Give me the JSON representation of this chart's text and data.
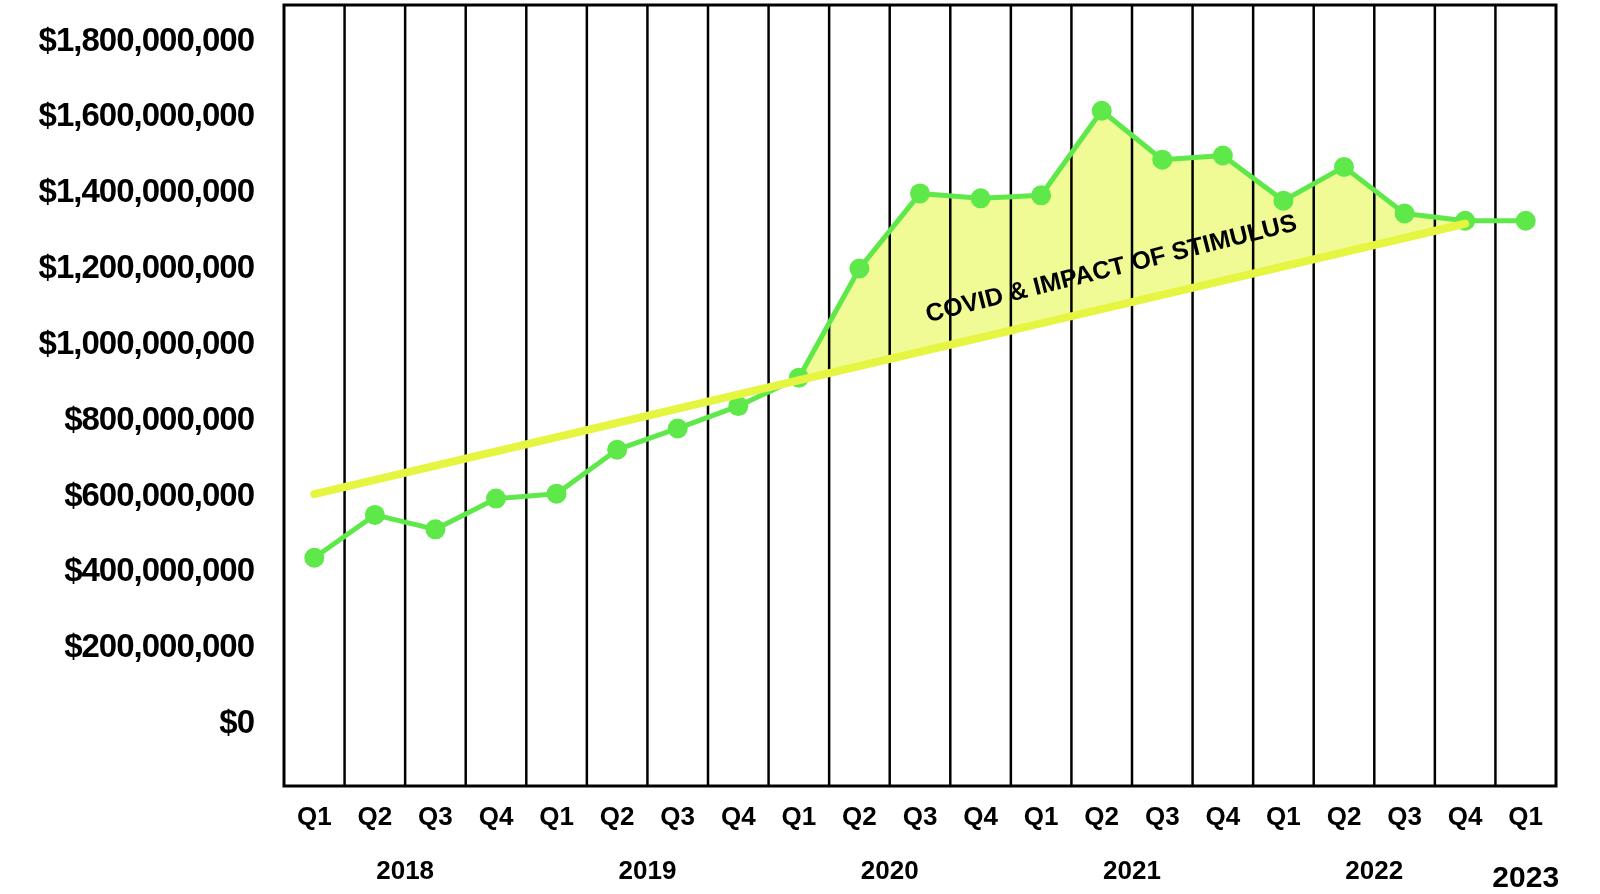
{
  "chart_data": {
    "type": "line",
    "categories": [
      "Q1",
      "Q2",
      "Q3",
      "Q4",
      "Q1",
      "Q2",
      "Q3",
      "Q4",
      "Q1",
      "Q2",
      "Q3",
      "Q4",
      "Q1",
      "Q2",
      "Q3",
      "Q4",
      "Q1",
      "Q2",
      "Q3",
      "Q4",
      "Q1"
    ],
    "series": [
      {
        "color": "#5fe84a",
        "marker": "circle",
        "values": [
          432000000,
          545000000,
          507000000,
          588000000,
          601000000,
          717000000,
          773000000,
          832000000,
          907000000,
          1195000000,
          1393000000,
          1380000000,
          1388000000,
          1611000000,
          1482000000,
          1493000000,
          1374000000,
          1463000000,
          1340000000,
          1321000000,
          1321000000
        ]
      },
      {
        "color": "#e6f542",
        "marker": "none",
        "values": [
          600000000,
          null,
          null,
          null,
          null,
          null,
          null,
          null,
          null,
          null,
          null,
          null,
          null,
          null,
          null,
          null,
          null,
          null,
          null,
          1313000000,
          null
        ]
      }
    ],
    "ylim": [
      -170000000,
      1890000000
    ],
    "yticks": [
      {
        "value": 0,
        "label": "$0"
      },
      {
        "value": 200000000,
        "label": "$200,000,000"
      },
      {
        "value": 400000000,
        "label": "$400,000,000"
      },
      {
        "value": 600000000,
        "label": "$600,000,000"
      },
      {
        "value": 800000000,
        "label": "$800,000,000"
      },
      {
        "value": 1000000000,
        "label": "$1,000,000,000"
      },
      {
        "value": 1200000000,
        "label": "$1,200,000,000"
      },
      {
        "value": 1400000000,
        "label": "$1,400,000,000"
      },
      {
        "value": 1600000000,
        "label": "$1,600,000,000"
      },
      {
        "value": 1800000000,
        "label": "$1,800,000,000"
      }
    ],
    "grid": "x",
    "annotations": [
      "COVID & IMPACT OF STIMULUS",
      "2018",
      "2019",
      "2020",
      "2021",
      "2022",
      "2023"
    ]
  }
}
